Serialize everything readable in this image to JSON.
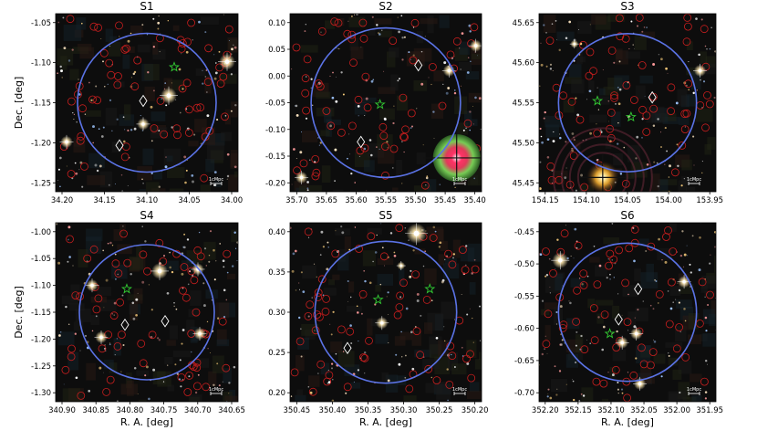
{
  "figure": {
    "xlabel": "R. A. [deg]",
    "ylabel": "Dec. [deg]",
    "scale_bar_label": "1cMpc",
    "colors": {
      "circle": "#5b73e6",
      "galaxy_marker": "#c81e1e",
      "star_marker": "#33cc33",
      "diamond_marker": "#ffffff",
      "sky": "#0d0d0d"
    },
    "panels": [
      {
        "id": "S1",
        "title": "S1",
        "x_ticks": [
          "34.20",
          "34.15",
          "34.10",
          "34.05",
          "34.00"
        ],
        "y_ticks": [
          "-1.05",
          "-1.10",
          "-1.15",
          "-1.20",
          "-1.25"
        ],
        "show_xlabel": false,
        "show_ylabel": true
      },
      {
        "id": "S2",
        "title": "S2",
        "x_ticks": [
          "35.70",
          "35.65",
          "35.60",
          "35.55",
          "35.50",
          "35.45",
          "35.40"
        ],
        "y_ticks": [
          "0.10",
          "0.05",
          "0.00",
          "-0.05",
          "-0.10",
          "-0.15",
          "-0.20"
        ],
        "show_xlabel": false,
        "show_ylabel": false
      },
      {
        "id": "S3",
        "title": "S3",
        "x_ticks": [
          "154.15",
          "154.10",
          "154.05",
          "154.00",
          "153.95"
        ],
        "y_ticks": [
          "45.65",
          "45.60",
          "45.55",
          "45.50",
          "45.45"
        ],
        "show_xlabel": false,
        "show_ylabel": false
      },
      {
        "id": "S4",
        "title": "S4",
        "x_ticks": [
          "340.90",
          "340.85",
          "340.80",
          "340.75",
          "340.70",
          "340.65"
        ],
        "y_ticks": [
          "-1.00",
          "-1.05",
          "-1.10",
          "-1.15",
          "-1.20",
          "-1.25",
          "-1.30"
        ],
        "show_xlabel": true,
        "show_ylabel": true
      },
      {
        "id": "S5",
        "title": "S5",
        "x_ticks": [
          "350.45",
          "350.40",
          "350.35",
          "350.30",
          "350.25",
          "350.20"
        ],
        "y_ticks": [
          "0.40",
          "0.35",
          "0.30",
          "0.25",
          "0.20"
        ],
        "show_xlabel": true,
        "show_ylabel": false
      },
      {
        "id": "S6",
        "title": "S6",
        "x_ticks": [
          "352.20",
          "352.15",
          "352.10",
          "352.05",
          "352.00",
          "351.95"
        ],
        "y_ticks": [
          "-0.45",
          "-0.50",
          "-0.55",
          "-0.60",
          "-0.65",
          "-0.70"
        ],
        "show_xlabel": true,
        "show_ylabel": false
      }
    ]
  }
}
